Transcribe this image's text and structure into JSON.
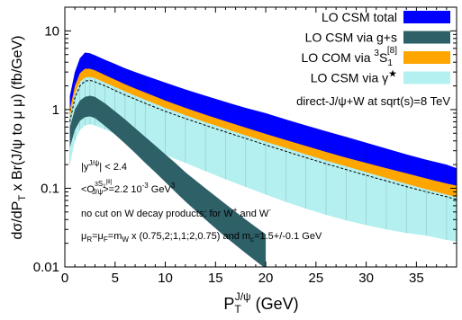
{
  "chart_data": {
    "type": "area",
    "xlabel": "P_T^{J/ψ} (GeV)",
    "xlabel_main": "P",
    "xlabel_sub": "T",
    "xlabel_sup": "J/ψ",
    "xlabel_unit": "(GeV)",
    "ylabel": "dσ/dP_T x Br(J/ψ to μ μ) (fb/GeV)",
    "ylabel_parts": [
      "dσ/dP",
      "T",
      " x Br(J/ψ to μ μ) (fb/GeV)"
    ],
    "xlim": [
      0,
      39
    ],
    "ylim": [
      0.01,
      20
    ],
    "log_y": true,
    "x_ticks": [
      0,
      5,
      10,
      15,
      20,
      25,
      30,
      35
    ],
    "y_ticks": [
      {
        "value": 0.01,
        "label": "0.01"
      },
      {
        "value": 0.1,
        "label": "0.1"
      },
      {
        "value": 1,
        "label": "1"
      },
      {
        "value": 10,
        "label": "10"
      }
    ],
    "legend_position": "top-right",
    "legend": [
      {
        "label": "LO CSM total",
        "color": "#0000ff"
      },
      {
        "label": "LO CSM via g+s",
        "color": "#2e6068"
      },
      {
        "label": "LO COM via ",
        "label_extra": "3S1[8]",
        "label_pre": "3",
        "label_mid": "S",
        "label_sub": "1",
        "label_sup": "[8]",
        "color": "#ffa500"
      },
      {
        "label": "LO CSM via γ",
        "label_sup": "★",
        "color": "#b4f0f0"
      }
    ],
    "header_text": "direct-J/ψ+W at sqrt(s)=8 TeV",
    "annotations": [
      {
        "text": "|y^{J/ψ}| < 2.4",
        "parts": [
          "|y",
          "J/ψ",
          "| < 2.4"
        ]
      },
      {
        "text": "<O^{3S1[8]}_{J/ψ}>=2.2 10^-3 GeV^3",
        "parts": [
          "<O",
          "3",
          "S",
          "1",
          "[8]",
          "J/ψ",
          ">=2.2 10",
          "-3",
          " GeV",
          "3"
        ]
      },
      {
        "text": "no cut on W decay products; for W+ and W-",
        "parts": [
          "no cut on W decay products; for W",
          "+",
          " and W",
          "-"
        ]
      },
      {
        "text": "μR=μF=mW x (0.75,2;1,1;2,0.75) and mc=1.5+/-0.1 GeV",
        "parts": [
          "μ",
          "R",
          "=μ",
          "F",
          "=m",
          "W",
          " x (0.75,2;1,1;2,0.75) and m",
          "c",
          "=1.5+/-0.1 GeV"
        ]
      }
    ],
    "series": [
      {
        "name": "LO CSM total",
        "color": "#0000ff",
        "x": [
          0.5,
          1,
          1.5,
          2,
          2.5,
          3,
          4,
          5,
          6,
          7,
          8,
          10,
          12,
          14,
          16,
          18,
          20,
          22,
          24,
          26,
          28,
          30,
          32,
          34,
          36,
          38,
          39
        ],
        "upper": [
          1.5,
          3.0,
          4.5,
          5.3,
          5.2,
          4.9,
          4.3,
          3.8,
          3.35,
          3.0,
          2.7,
          2.2,
          1.8,
          1.5,
          1.25,
          1.05,
          0.9,
          0.75,
          0.63,
          0.53,
          0.45,
          0.38,
          0.32,
          0.27,
          0.23,
          0.2,
          0.18
        ],
        "lower": [
          0.45,
          0.9,
          1.35,
          1.6,
          1.65,
          1.6,
          1.45,
          1.3,
          1.15,
          1.02,
          0.9,
          0.7,
          0.55,
          0.44,
          0.35,
          0.28,
          0.23,
          0.19,
          0.16,
          0.135,
          0.115,
          0.098,
          0.085,
          0.074,
          0.065,
          0.057,
          0.054
        ]
      },
      {
        "name": "LO CSM via g+s",
        "color": "#2e6068",
        "x": [
          0.5,
          1,
          1.5,
          2,
          2.5,
          3,
          4,
          5,
          6,
          7,
          8,
          9,
          10,
          11,
          12,
          14,
          16,
          18,
          20
        ],
        "upper": [
          0.6,
          1.0,
          1.3,
          1.45,
          1.5,
          1.45,
          1.2,
          0.95,
          0.75,
          0.58,
          0.45,
          0.35,
          0.27,
          0.21,
          0.16,
          0.1,
          0.063,
          0.04,
          0.026
        ],
        "lower": [
          0.33,
          0.55,
          0.72,
          0.8,
          0.82,
          0.78,
          0.62,
          0.48,
          0.37,
          0.28,
          0.21,
          0.16,
          0.12,
          0.09,
          0.068,
          0.04,
          0.024,
          0.015,
          0.0095
        ]
      },
      {
        "name": "LO COM via 3S1[8]",
        "color": "#ffa500",
        "x": [
          0.5,
          1,
          1.5,
          2,
          2.5,
          3,
          4,
          5,
          6,
          7,
          8,
          10,
          12,
          14,
          16,
          18,
          20,
          22,
          24,
          26,
          28,
          30,
          32,
          34,
          36,
          38,
          39
        ],
        "upper": [
          1.0,
          2.0,
          2.9,
          3.3,
          3.3,
          3.15,
          2.75,
          2.4,
          2.1,
          1.85,
          1.65,
          1.3,
          1.05,
          0.86,
          0.71,
          0.59,
          0.49,
          0.41,
          0.345,
          0.29,
          0.245,
          0.21,
          0.18,
          0.155,
          0.133,
          0.115,
          0.108
        ],
        "lower": [
          0.45,
          0.9,
          1.35,
          1.6,
          1.65,
          1.6,
          1.45,
          1.3,
          1.15,
          1.02,
          0.9,
          0.7,
          0.55,
          0.44,
          0.35,
          0.28,
          0.23,
          0.19,
          0.16,
          0.135,
          0.115,
          0.098,
          0.085,
          0.074,
          0.065,
          0.057,
          0.054
        ]
      },
      {
        "name": "LO CSM via γ★",
        "color": "#b4f0f0",
        "x": [
          0.5,
          1,
          1.5,
          2,
          2.5,
          3,
          4,
          5,
          6,
          7,
          8,
          10,
          12,
          14,
          16,
          18,
          20,
          22,
          24,
          26,
          28,
          30,
          32,
          34,
          36,
          38,
          39
        ],
        "upper": [
          0.8,
          1.6,
          2.25,
          2.55,
          2.6,
          2.5,
          2.2,
          1.93,
          1.7,
          1.5,
          1.33,
          1.05,
          0.85,
          0.69,
          0.57,
          0.47,
          0.39,
          0.325,
          0.27,
          0.225,
          0.19,
          0.16,
          0.135,
          0.114,
          0.097,
          0.083,
          0.077
        ],
        "lower": [
          0.2,
          0.4,
          0.55,
          0.63,
          0.65,
          0.63,
          0.56,
          0.49,
          0.43,
          0.38,
          0.335,
          0.265,
          0.21,
          0.165,
          0.13,
          0.104,
          0.083,
          0.067,
          0.055,
          0.046,
          0.039,
          0.034,
          0.03,
          0.027,
          0.025,
          0.022,
          0.021
        ]
      },
      {
        "name": "central",
        "color": "#000000",
        "x": [
          0.5,
          1,
          1.5,
          2,
          2.5,
          3,
          4,
          5,
          6,
          7,
          8,
          10,
          12,
          14,
          16,
          18,
          20,
          22,
          24,
          26,
          28,
          30,
          32,
          34,
          36,
          38,
          39
        ],
        "values": [
          0.7,
          1.4,
          2.0,
          2.3,
          2.35,
          2.25,
          2.0,
          1.75,
          1.53,
          1.36,
          1.2,
          0.95,
          0.77,
          0.63,
          0.52,
          0.43,
          0.355,
          0.295,
          0.245,
          0.205,
          0.173,
          0.146,
          0.124,
          0.105,
          0.09,
          0.078,
          0.072
        ]
      }
    ]
  }
}
